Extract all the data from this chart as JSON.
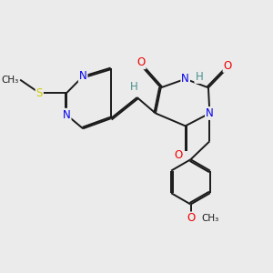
{
  "bg_color": "#ebebeb",
  "bond_color": "#1a1a1a",
  "bond_lw": 1.4,
  "dbo": 0.055,
  "atom_colors": {
    "N": "#0000ee",
    "O": "#ee0000",
    "S": "#cccc00",
    "H": "#4a9090",
    "C": "#1a1a1a"
  },
  "fs": 8.5,
  "fs_small": 7.5
}
